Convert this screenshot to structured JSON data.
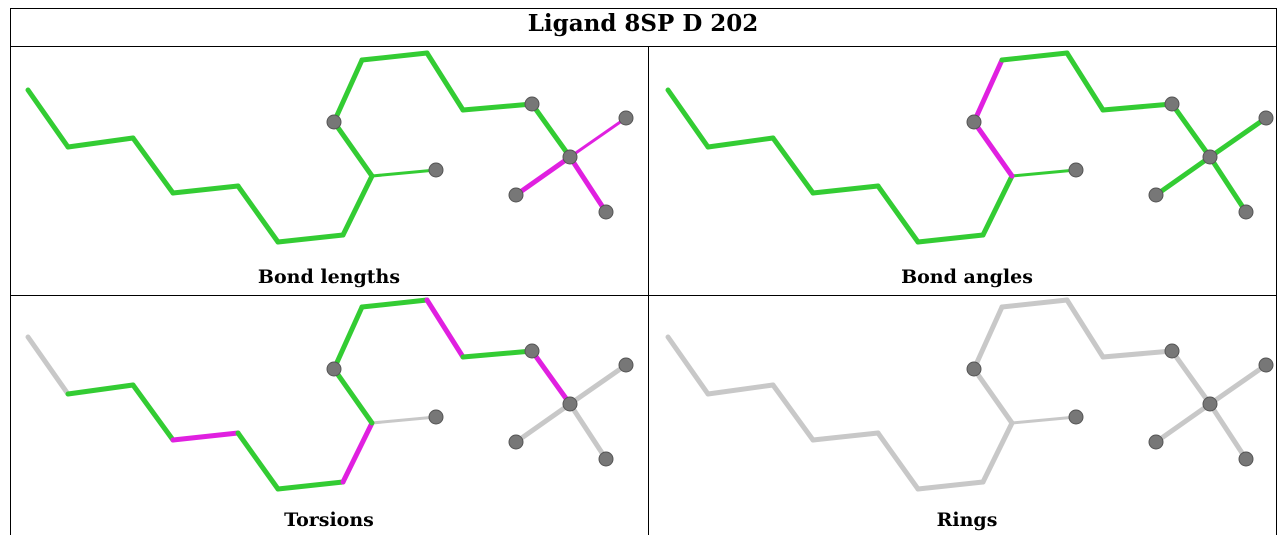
{
  "title": "Ligand 8SP D 202",
  "panels": [
    {
      "caption": "Bond lengths"
    },
    {
      "caption": "Bond angles"
    },
    {
      "caption": "Torsions"
    },
    {
      "caption": "Rings"
    }
  ]
}
